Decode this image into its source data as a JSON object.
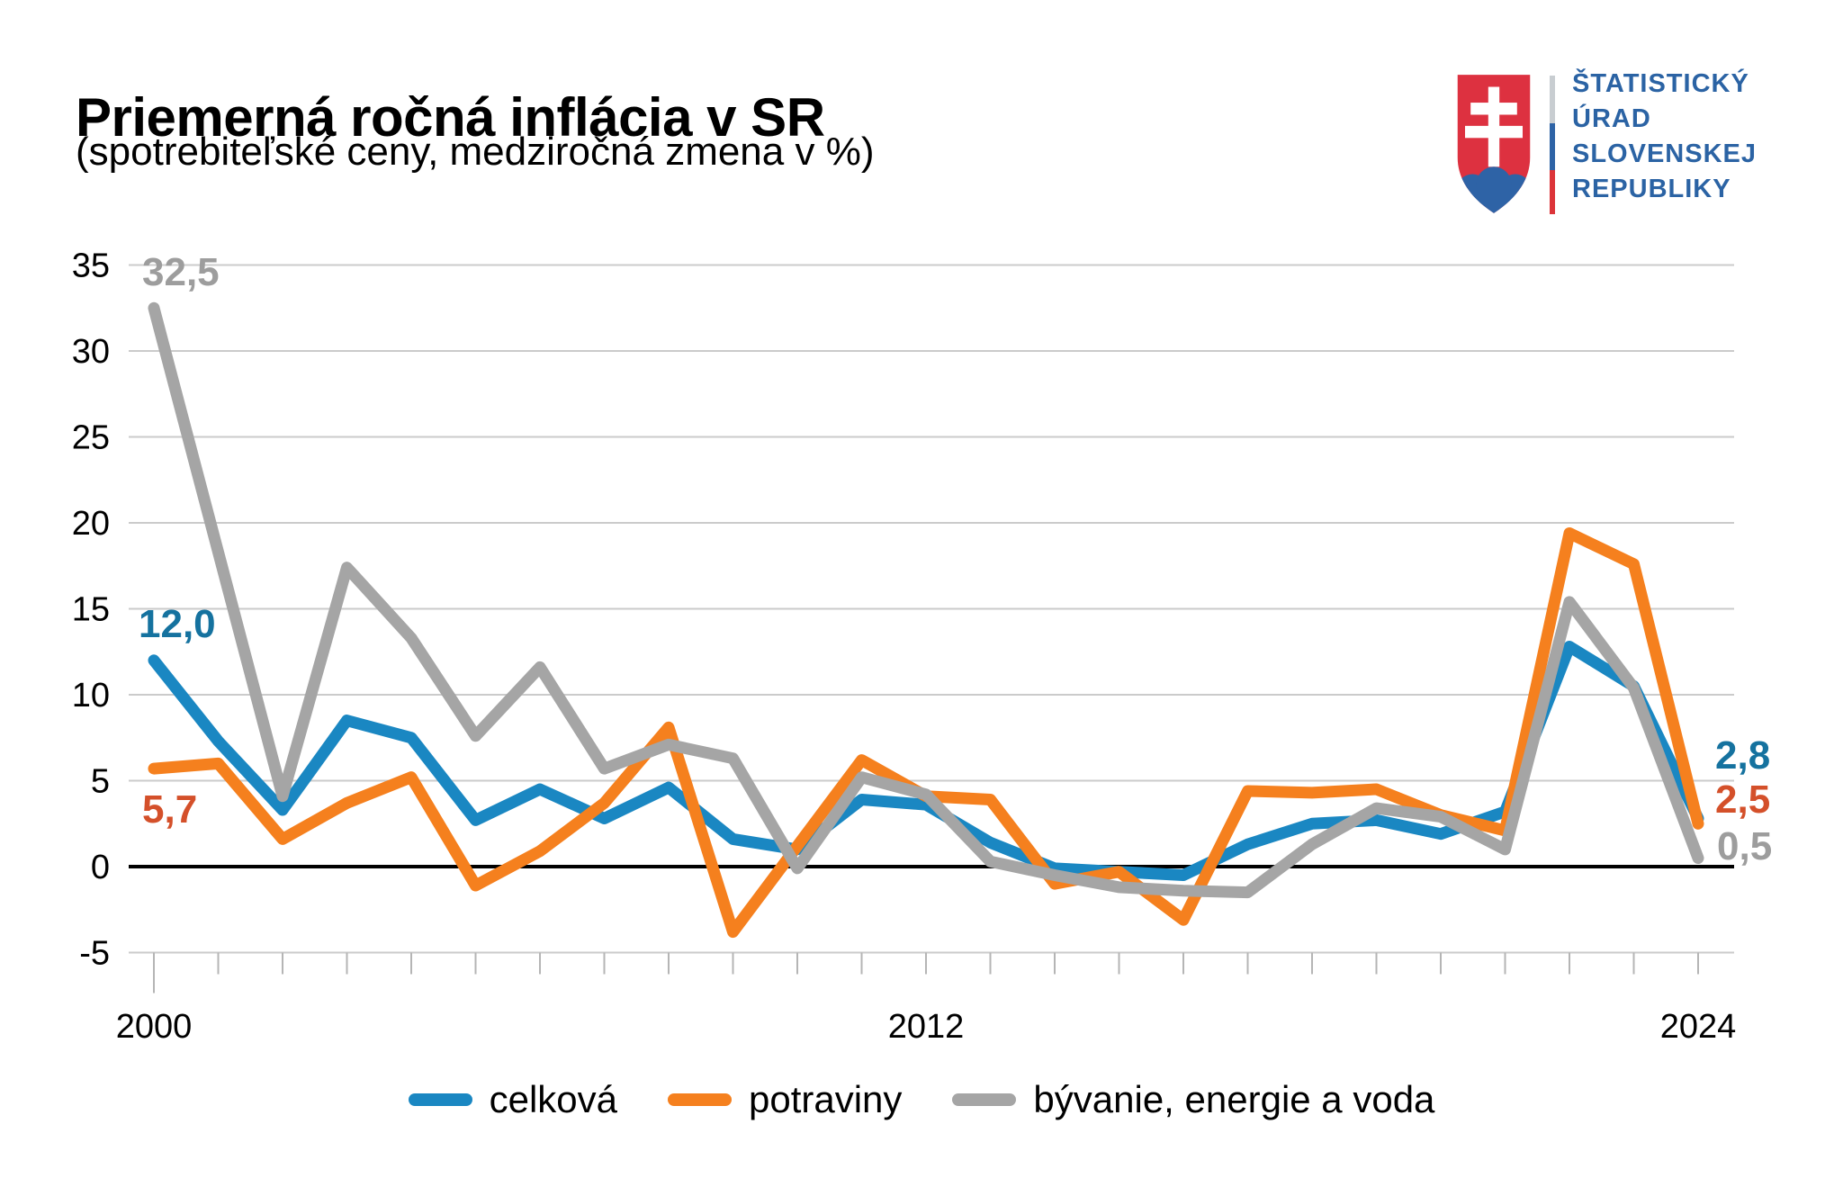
{
  "header": {
    "title": "Priemerná ročná inflácia v SR",
    "subtitle": "(spotrebiteľské ceny, medziročná zmena v %)"
  },
  "logo": {
    "lines": [
      "ŠTATISTICKÝ",
      "ÚRAD",
      "SLOVENSKEJ",
      "REPUBLIKY"
    ],
    "text_color": "#2b63a4",
    "shield_red": "#dd3140",
    "shield_blue": "#2e63a6",
    "bar_gray": "#c8cdd1",
    "bar_blue": "#2e63a6",
    "bar_red": "#dc3439"
  },
  "colors": {
    "celkova_line": "#1a87c2",
    "celkova_label": "#15729f",
    "potraviny_line": "#f5801e",
    "potraviny_label": "#d4502a",
    "byvanie_line": "#a5a5a5",
    "byvanie_label": "#9d9d9d",
    "gridline": "#cbcbcb",
    "zero_line": "#000000",
    "tick": "#b5b5b5"
  },
  "annotations": {
    "start": {
      "byvanie": "32,5",
      "celkova": "12,0",
      "potraviny": "5,7"
    },
    "end": {
      "celkova": "2,8",
      "potraviny": "2,5",
      "byvanie": "0,5"
    }
  },
  "legend": [
    {
      "label": "celková",
      "color": "#1a87c2"
    },
    {
      "label": "potraviny",
      "color": "#f5801e"
    },
    {
      "label": "bývanie, energie a voda",
      "color": "#a5a5a5"
    }
  ],
  "chart_data": {
    "type": "line",
    "title": "Priemerná ročná inflácia v SR",
    "subtitle": "(spotrebiteľské ceny, medziročná zmena v %)",
    "xlabel": "",
    "ylabel": "",
    "x": [
      2000,
      2001,
      2002,
      2003,
      2004,
      2005,
      2006,
      2007,
      2008,
      2009,
      2010,
      2011,
      2012,
      2013,
      2014,
      2015,
      2016,
      2017,
      2018,
      2019,
      2020,
      2021,
      2022,
      2023,
      2024
    ],
    "x_tick_labels": [
      "2000",
      "2012",
      "2024"
    ],
    "ylim": [
      -5,
      35
    ],
    "y_ticks": [
      35,
      30,
      25,
      20,
      15,
      10,
      5,
      0,
      -5
    ],
    "grid": "horizontal",
    "legend_position": "bottom",
    "series": [
      {
        "name": "celková",
        "color": "#1a87c2",
        "values": [
          12.0,
          7.3,
          3.3,
          8.5,
          7.5,
          2.7,
          4.5,
          2.8,
          4.6,
          1.6,
          1.0,
          3.9,
          3.6,
          1.4,
          -0.1,
          -0.3,
          -0.5,
          1.3,
          2.5,
          2.7,
          1.9,
          3.2,
          12.8,
          10.5,
          2.8
        ]
      },
      {
        "name": "potraviny",
        "color": "#f5801e",
        "values": [
          5.7,
          6.0,
          1.6,
          3.7,
          5.2,
          -1.1,
          0.9,
          3.7,
          8.1,
          -3.8,
          1.2,
          6.2,
          4.1,
          3.9,
          -1.0,
          -0.3,
          -3.1,
          4.4,
          4.3,
          4.5,
          3.0,
          2.1,
          19.4,
          17.6,
          2.5
        ]
      },
      {
        "name": "bývanie, energie a voda",
        "color": "#a5a5a5",
        "values": [
          32.5,
          18.3,
          4.1,
          17.4,
          13.3,
          7.6,
          11.6,
          5.7,
          7.1,
          6.3,
          -0.1,
          5.2,
          4.2,
          0.3,
          -0.5,
          -1.2,
          -1.4,
          -1.5,
          1.3,
          3.4,
          2.9,
          1.0,
          15.4,
          10.4,
          0.5
        ]
      }
    ]
  }
}
